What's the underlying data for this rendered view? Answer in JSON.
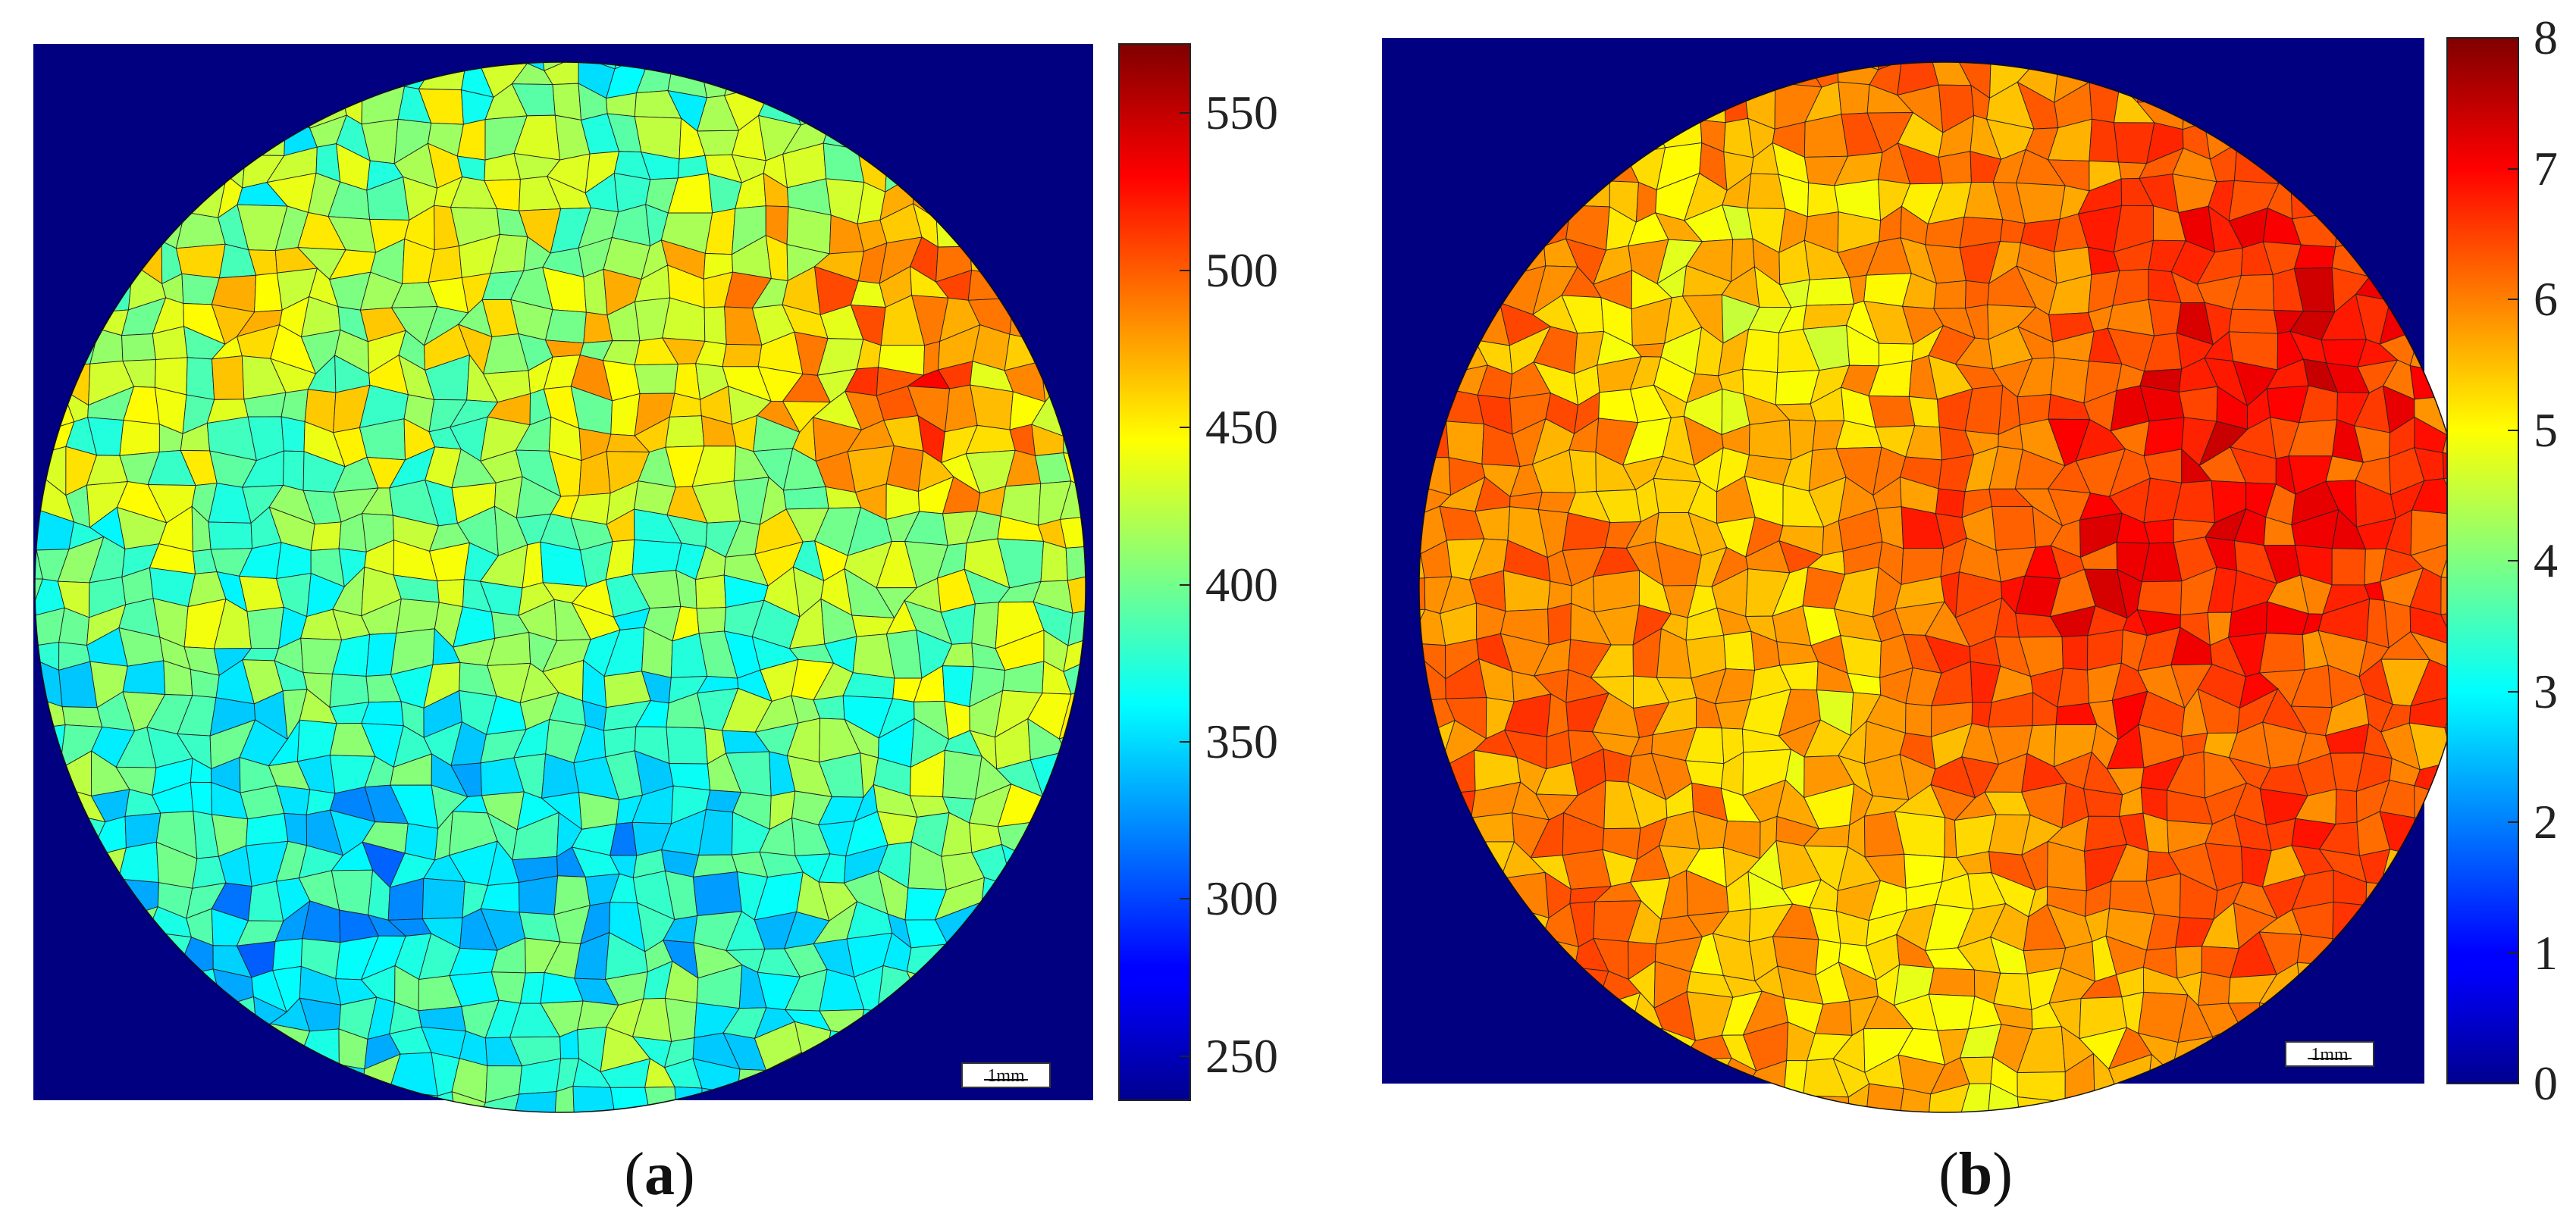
{
  "panels": [
    {
      "id": "a",
      "caption_open": "(",
      "caption_letter": "a",
      "caption_close": ")",
      "scale_label": "1mm",
      "colorbar": {
        "min": 236,
        "max": 572,
        "ticks": [
          "250",
          "300",
          "350",
          "400",
          "450",
          "500",
          "550"
        ],
        "tick_values": [
          250,
          300,
          350,
          400,
          450,
          500,
          550
        ]
      },
      "background_color": "#000080",
      "grain_bias": 0.52,
      "grain_spread": 0.17
    },
    {
      "id": "b",
      "caption_open": "(",
      "caption_letter": "b",
      "caption_close": ")",
      "scale_label": "1mm",
      "colorbar": {
        "min": 0,
        "max": 8,
        "ticks": [
          "0",
          "1",
          "2",
          "3",
          "4",
          "5",
          "6",
          "7",
          "8"
        ],
        "tick_values": [
          0,
          1,
          2,
          3,
          4,
          5,
          6,
          7,
          8
        ]
      },
      "background_color": "#000080",
      "grain_bias": 0.76,
      "grain_spread": 0.1
    }
  ],
  "colormap": "jet"
}
